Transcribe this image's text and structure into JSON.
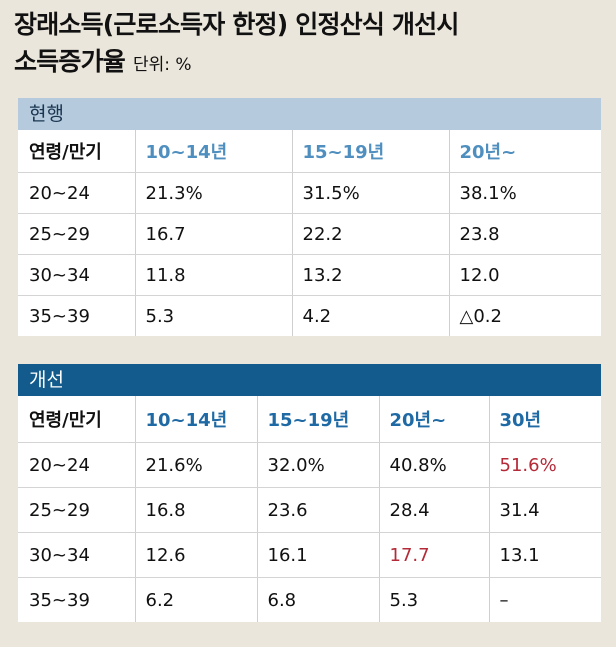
{
  "title": {
    "line1": "장래소득(근로소득자 한정) 인정산식 개선시",
    "line2": "소득증가율",
    "unit": "단위: %"
  },
  "colors": {
    "current_header_bg": "#b5cbdd",
    "improved_header_bg": "#125b8c",
    "highlight_red": "#b42a38",
    "current_col_header": "#4f8fbf",
    "improved_col_header": "#1f6aa5"
  },
  "chart_data": [
    {
      "type": "table",
      "title": "현행",
      "columns": [
        "연령/만기",
        "10~14년",
        "15~19년",
        "20년~"
      ],
      "rows": [
        [
          "20~24",
          "21.3%",
          "31.5%",
          "38.1%"
        ],
        [
          "25~29",
          "16.7",
          "22.2",
          "23.8"
        ],
        [
          "30~34",
          "11.8",
          "13.2",
          "12.0"
        ],
        [
          "35~39",
          "5.3",
          "4.2",
          "△0.2"
        ]
      ],
      "unit": "%"
    },
    {
      "type": "table",
      "title": "개선",
      "columns": [
        "연령/만기",
        "10~14년",
        "15~19년",
        "20년~",
        "30년"
      ],
      "rows": [
        [
          "20~24",
          "21.6%",
          "32.0%",
          "40.8%",
          "51.6%"
        ],
        [
          "25~29",
          "16.8",
          "23.6",
          "28.4",
          "31.4"
        ],
        [
          "30~34",
          "12.6",
          "16.1",
          "17.7",
          "13.1"
        ],
        [
          "35~39",
          "6.2",
          "6.8",
          "5.3",
          "–"
        ]
      ],
      "highlighted": [
        [
          "20~24",
          "30년"
        ],
        [
          "30~34",
          "20년~"
        ]
      ],
      "unit": "%"
    }
  ]
}
